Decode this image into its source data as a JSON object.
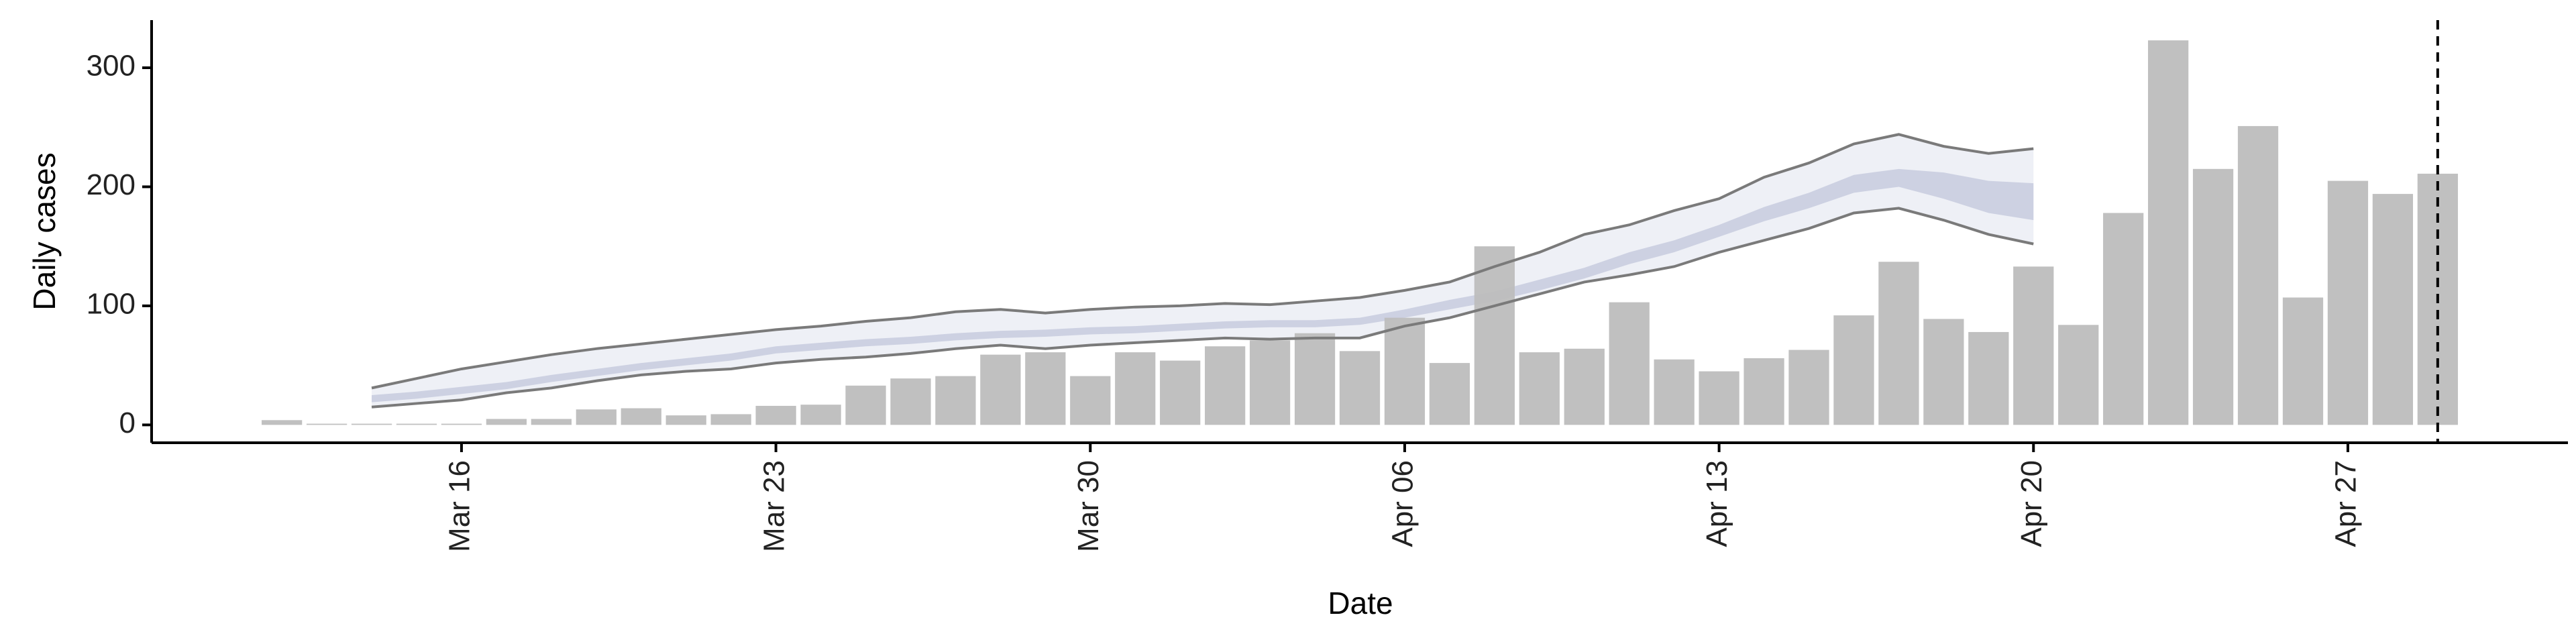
{
  "chart_data": {
    "type": "bar",
    "xlabel": "Date",
    "ylabel": "Daily cases",
    "categories": [
      null,
      null,
      null,
      null,
      "Mar 16",
      null,
      null,
      null,
      null,
      null,
      null,
      "Mar 23",
      null,
      null,
      null,
      null,
      null,
      null,
      "Mar 30",
      null,
      null,
      null,
      null,
      null,
      null,
      "Apr 06",
      null,
      null,
      null,
      null,
      null,
      null,
      "Apr 13",
      null,
      null,
      null,
      null,
      null,
      null,
      "Apr 20",
      null,
      null,
      null,
      null,
      null,
      null,
      "Apr 27",
      null,
      null
    ],
    "xlim": [
      -2.9,
      50.9
    ],
    "ylim": [
      -15,
      340
    ],
    "yticks": [
      0,
      100,
      200,
      300
    ],
    "reference_line": 48,
    "bars": {
      "color": "#bdbdbd",
      "values": [
        4,
        1,
        1,
        1,
        1,
        5,
        5,
        13,
        14,
        8,
        9,
        16,
        17,
        33,
        39,
        41,
        59,
        61,
        41,
        61,
        54,
        66,
        71,
        77,
        62,
        90,
        52,
        150,
        61,
        64,
        103,
        55,
        45,
        56,
        63,
        92,
        137,
        89,
        78,
        133,
        84,
        178,
        323,
        215,
        251,
        107,
        205,
        194,
        211
      ]
    },
    "bands": [
      {
        "color": "#eceef5",
        "line_color": "#7a7a7a",
        "upper": [
          null,
          null,
          31,
          39,
          47,
          53,
          59,
          64,
          68,
          72,
          76,
          80,
          83,
          87,
          90,
          95,
          97,
          94,
          97,
          99,
          100,
          102,
          101,
          104,
          107,
          113,
          120,
          133,
          145,
          160,
          168,
          180,
          190,
          208,
          220,
          236,
          244,
          234,
          228,
          232,
          null,
          null,
          null,
          null,
          null,
          null,
          null,
          null,
          null
        ],
        "lower": [
          null,
          null,
          15,
          18,
          21,
          27,
          31,
          37,
          42,
          45,
          47,
          52,
          55,
          57,
          60,
          64,
          67,
          64,
          67,
          69,
          71,
          73,
          72,
          73,
          73,
          83,
          90,
          100,
          110,
          120,
          126,
          133,
          145,
          155,
          165,
          178,
          182,
          172,
          160,
          152,
          null,
          null,
          null,
          null,
          null,
          null,
          null,
          null,
          null
        ]
      },
      {
        "color": "#c9cde0",
        "upper": [
          null,
          null,
          25,
          28,
          32,
          36,
          42,
          47,
          52,
          56,
          60,
          66,
          69,
          72,
          74,
          77,
          79,
          80,
          82,
          83,
          85,
          87,
          88,
          88,
          90,
          97,
          105,
          112,
          122,
          132,
          145,
          155,
          168,
          183,
          195,
          210,
          215,
          212,
          205,
          203,
          null,
          null,
          null,
          null,
          null,
          null,
          null,
          null,
          null
        ],
        "lower": [
          null,
          null,
          19,
          22,
          26,
          30,
          36,
          41,
          46,
          50,
          54,
          60,
          63,
          66,
          68,
          71,
          73,
          74,
          76,
          77,
          79,
          81,
          82,
          82,
          84,
          90,
          97,
          104,
          113,
          123,
          135,
          145,
          158,
          171,
          182,
          195,
          200,
          190,
          178,
          172,
          null,
          null,
          null,
          null,
          null,
          null,
          null,
          null,
          null
        ]
      }
    ]
  }
}
